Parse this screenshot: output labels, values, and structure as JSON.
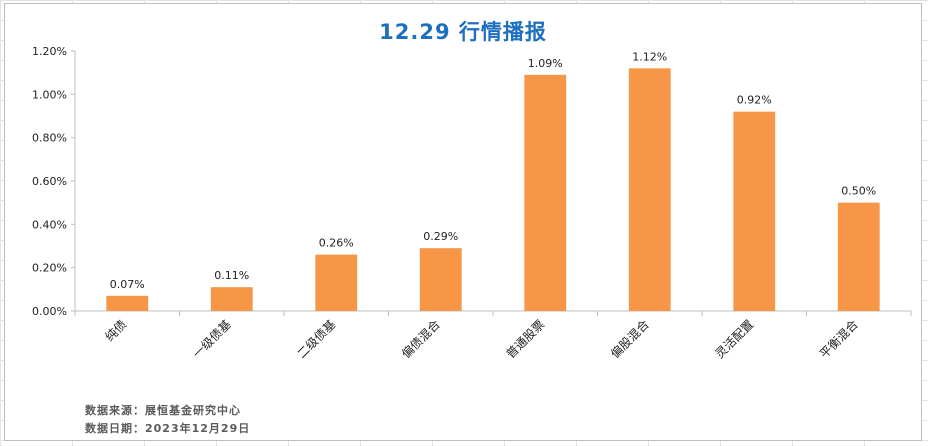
{
  "chart_data": {
    "type": "bar",
    "title": "12.29 行情播报",
    "categories": [
      "纯债",
      "一级债基",
      "二级债基",
      "偏债混合",
      "普通股票",
      "偏股混合",
      "灵活配置",
      "平衡混合"
    ],
    "values": [
      0.07,
      0.11,
      0.26,
      0.29,
      1.09,
      1.12,
      0.92,
      0.5
    ],
    "data_labels": [
      "0.07%",
      "0.11%",
      "0.26%",
      "0.29%",
      "1.09%",
      "1.12%",
      "0.92%",
      "0.50%"
    ],
    "y_ticks": [
      0,
      0.2,
      0.4,
      0.6,
      0.8,
      1.0,
      1.2
    ],
    "y_tick_labels": [
      "0.00%",
      "0.20%",
      "0.40%",
      "0.60%",
      "0.80%",
      "1.00%",
      "1.20%"
    ],
    "ylim": [
      0,
      1.2
    ],
    "xlabel": "",
    "ylabel": "",
    "grid": false,
    "bar_color": "#f79646"
  },
  "footer": {
    "source": "数据来源：展恒基金研究中心",
    "date": "数据日期：2023年12月29日"
  },
  "colors": {
    "title": "#1f6fbf",
    "bar": "#f79646"
  }
}
